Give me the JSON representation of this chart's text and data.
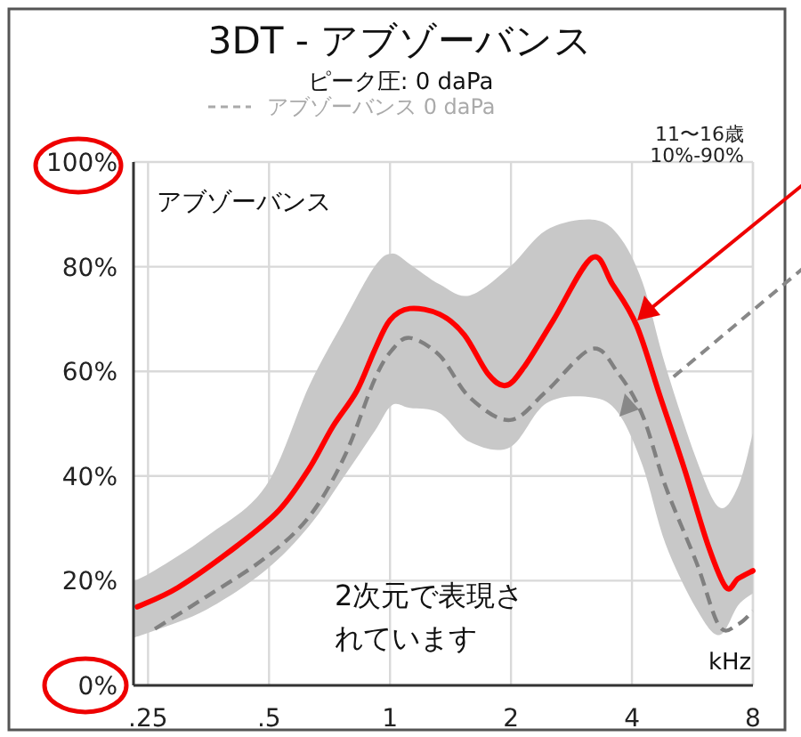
{
  "chart_data": {
    "type": "line",
    "title": "3DT - アブゾーバンス",
    "subtitle": "ピーク圧:  0 daPa",
    "ylabel": "アブゾーバンス",
    "xlabel": "kHz",
    "annotations": [
      "11〜16歳",
      "10%-90%",
      "2次元で表現されています"
    ],
    "log": "x",
    "grid": true,
    "legend": "top",
    "xlim": [
      0.23,
      8
    ],
    "ylim": [
      0,
      100
    ],
    "xticks": [
      {
        "value": 0.25,
        "label": ".25"
      },
      {
        "value": 0.5,
        "label": ".5"
      },
      1,
      2,
      4,
      8
    ],
    "yticks": [
      {
        "value": 0,
        "label": "0%"
      },
      {
        "value": 20,
        "label": "20%"
      },
      {
        "value": 40,
        "label": "40%"
      },
      {
        "value": 60,
        "label": "60%"
      },
      {
        "value": 80,
        "label": "80%"
      },
      {
        "value": 100,
        "label": "100%"
      }
    ],
    "series": [
      {
        "color": "#ff0000",
        "line_style": "solid",
        "x": [
          0.235,
          0.297,
          0.417,
          0.53,
          0.629,
          0.72,
          0.826,
          0.915,
          1.0,
          1.12,
          1.33,
          1.53,
          1.75,
          1.94,
          2.15,
          2.55,
          3.18,
          3.58,
          4.11,
          4.71,
          5.4,
          6.19,
          6.86,
          7.35,
          8
        ],
        "values": [
          15,
          18.7,
          26.7,
          33.5,
          41.4,
          49.4,
          56.2,
          64,
          69.8,
          72,
          70.9,
          67,
          59.6,
          57.3,
          60.7,
          69.8,
          81.7,
          76.6,
          68.7,
          55,
          41.4,
          26.7,
          18.7,
          20.4,
          21.9
        ]
      },
      {
        "name": "アブゾーバンス 0 daPa",
        "color": "#808080",
        "line_style": "dashed",
        "x": [
          0.23,
          0.26,
          0.35,
          0.49,
          0.63,
          0.77,
          0.915,
          1.01,
          1.12,
          1.33,
          1.58,
          1.99,
          2.45,
          3.18,
          3.7,
          4.25,
          4.85,
          5.8,
          6.6,
          7.35,
          8
        ],
        "values": [
          null,
          10.8,
          17,
          24.4,
          32.3,
          43.7,
          58.4,
          64,
          66.4,
          63,
          55,
          50.7,
          56.2,
          64.3,
          59.6,
          51.6,
          38,
          23.3,
          11.3,
          11.7,
          14.2
        ],
        "upper": [
          19.9,
          22,
          28.5,
          38,
          57.3,
          69.8,
          80,
          82.5,
          80.5,
          76.6,
          74.5,
          80,
          87,
          89,
          86,
          77,
          61,
          43,
          34,
          38,
          48.2
        ],
        "lower": [
          9.1,
          10.5,
          14.5,
          22,
          30.5,
          40,
          48.5,
          53.5,
          53,
          52,
          46.5,
          45.5,
          53.9,
          55,
          52,
          42,
          27,
          14.5,
          9.6,
          15.3,
          17.6
        ]
      }
    ]
  }
}
